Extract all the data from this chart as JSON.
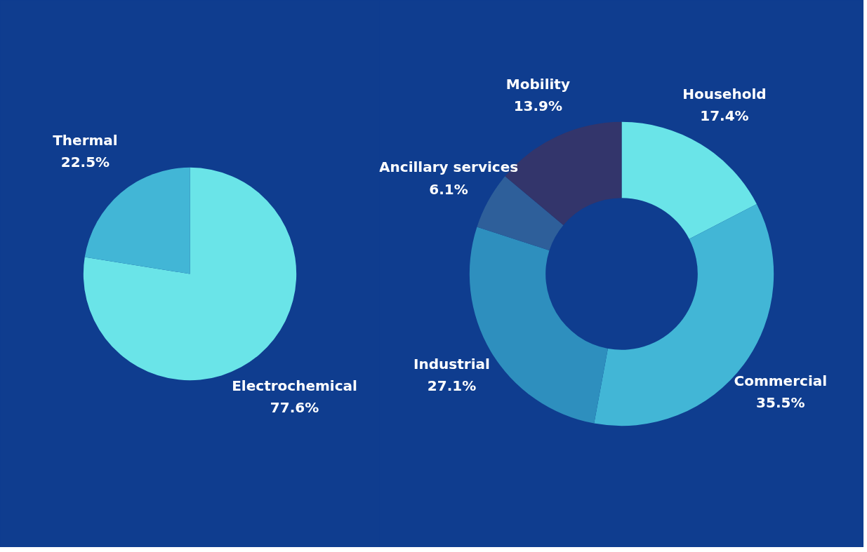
{
  "chart_data": [
    {
      "type": "pie",
      "categories": [
        "Electrochemical",
        "Thermal"
      ],
      "values": [
        77.6,
        22.5
      ],
      "value_labels": [
        "77.6%",
        "22.5%"
      ],
      "colors": [
        "#6ae4e8",
        "#42b6d6"
      ]
    },
    {
      "type": "donut",
      "categories": [
        "Household",
        "Commercial",
        "Industrial",
        "Ancillary services",
        "Mobility"
      ],
      "values": [
        17.4,
        35.5,
        27.1,
        6.1,
        13.9
      ],
      "value_labels": [
        "17.4%",
        "35.5%",
        "27.1%",
        "6.1%",
        "13.9%"
      ],
      "colors": [
        "#6ae4e8",
        "#42b6d6",
        "#2e8fbe",
        "#2e5f9a",
        "#33356b"
      ]
    }
  ]
}
